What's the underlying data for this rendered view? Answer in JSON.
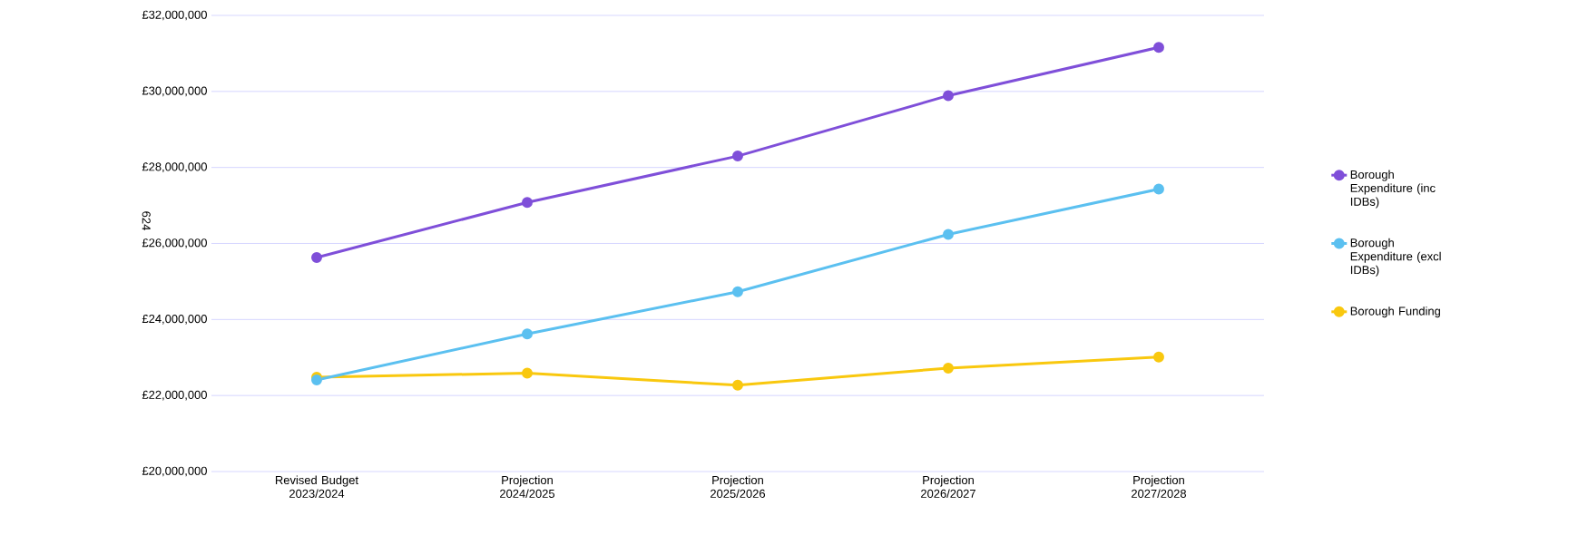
{
  "chart_data": {
    "type": "line",
    "ylabel": "624",
    "categories": [
      "Revised Budget 2023/2024",
      "Projection 2024/2025",
      "Projection 2025/2026",
      "Projection 2026/2027",
      "Projection 2027/2028"
    ],
    "series": [
      {
        "name": "Borough Expenditure (inc IDBs)",
        "color": "#7f4fd9",
        "values": [
          25630000,
          27080000,
          28300000,
          29890000,
          31160000
        ]
      },
      {
        "name": "Borough Expenditure (excl IDBs)",
        "color": "#5bc0f0",
        "values": [
          22410000,
          23620000,
          24730000,
          26240000,
          27430000
        ]
      },
      {
        "name": "Borough Funding",
        "color": "#f9c80e",
        "values": [
          22480000,
          22590000,
          22270000,
          22720000,
          23010000
        ]
      }
    ],
    "ylim": [
      20000000,
      32000000
    ],
    "yticks": [
      {
        "value": 20000000,
        "label": "£20,000,000"
      },
      {
        "value": 22000000,
        "label": "£22,000,000"
      },
      {
        "value": 24000000,
        "label": "£24,000,000"
      },
      {
        "value": 26000000,
        "label": "£26,000,000"
      },
      {
        "value": 28000000,
        "label": "£28,000,000"
      },
      {
        "value": 30000000,
        "label": "£30,000,000"
      },
      {
        "value": 32000000,
        "label": "£32,000,000"
      }
    ],
    "grid": "y",
    "legend": "right",
    "marker": "circle",
    "line_style": "solid"
  }
}
